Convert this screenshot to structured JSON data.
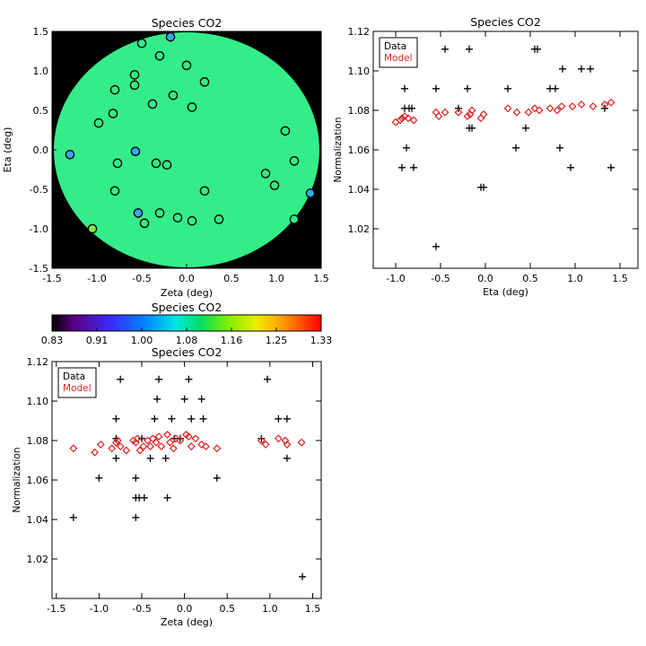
{
  "chart_data": [
    {
      "id": "map",
      "type": "scatter",
      "title": "Species CO2",
      "xlabel": "Zeta (deg)",
      "ylabel": "Eta (deg)",
      "xlim": [
        -1.5,
        1.5
      ],
      "ylim": [
        -1.5,
        1.5
      ],
      "xticks": [
        "-1.5",
        "-1.0",
        "-0.5",
        "0.0",
        "0.5",
        "1.0",
        "1.5"
      ],
      "yticks": [
        "-1.5",
        "-1.0",
        "-0.5",
        "0.0",
        "0.5",
        "1.0",
        "1.5"
      ],
      "background_color": "#000000",
      "disk_color": "#33ee88",
      "points": [
        {
          "x": -0.18,
          "y": 1.43,
          "color": "#33aaff"
        },
        {
          "x": -0.5,
          "y": 1.35,
          "color": "#33ee88"
        },
        {
          "x": -0.3,
          "y": 1.19,
          "color": "#33ee88"
        },
        {
          "x": 0.0,
          "y": 1.07,
          "color": "#33ee88"
        },
        {
          "x": -0.58,
          "y": 0.95,
          "color": "#33ee88"
        },
        {
          "x": 0.2,
          "y": 0.86,
          "color": "#33ee88"
        },
        {
          "x": -0.8,
          "y": 0.76,
          "color": "#33ee88"
        },
        {
          "x": -0.58,
          "y": 0.82,
          "color": "#33ee88"
        },
        {
          "x": -0.15,
          "y": 0.69,
          "color": "#33ee88"
        },
        {
          "x": -0.38,
          "y": 0.58,
          "color": "#33ee88"
        },
        {
          "x": 0.06,
          "y": 0.54,
          "color": "#33ee88"
        },
        {
          "x": -0.82,
          "y": 0.46,
          "color": "#33ee88"
        },
        {
          "x": -0.98,
          "y": 0.34,
          "color": "#33ee88"
        },
        {
          "x": 1.1,
          "y": 0.24,
          "color": "#33ee88"
        },
        {
          "x": -1.3,
          "y": -0.06,
          "color": "#33aaff"
        },
        {
          "x": -0.57,
          "y": -0.02,
          "color": "#33aaff"
        },
        {
          "x": -0.77,
          "y": -0.17,
          "color": "#33ee88"
        },
        {
          "x": -0.34,
          "y": -0.17,
          "color": "#33ee88"
        },
        {
          "x": -0.22,
          "y": -0.19,
          "color": "#33ee88"
        },
        {
          "x": 1.2,
          "y": -0.14,
          "color": "#33ee88"
        },
        {
          "x": 0.88,
          "y": -0.3,
          "color": "#33ee88"
        },
        {
          "x": 0.98,
          "y": -0.45,
          "color": "#33ee88"
        },
        {
          "x": -0.8,
          "y": -0.52,
          "color": "#33ee88"
        },
        {
          "x": 0.2,
          "y": -0.52,
          "color": "#33ee88"
        },
        {
          "x": 1.38,
          "y": -0.55,
          "color": "#33aaff"
        },
        {
          "x": -0.54,
          "y": -0.8,
          "color": "#33aaff"
        },
        {
          "x": -0.3,
          "y": -0.8,
          "color": "#33ee88"
        },
        {
          "x": -0.1,
          "y": -0.86,
          "color": "#33ee88"
        },
        {
          "x": 0.06,
          "y": -0.9,
          "color": "#33ee88"
        },
        {
          "x": 0.36,
          "y": -0.88,
          "color": "#33ee88"
        },
        {
          "x": -0.47,
          "y": -0.93,
          "color": "#33ee88"
        },
        {
          "x": 1.2,
          "y": -0.88,
          "color": "#33ee88"
        },
        {
          "x": -1.05,
          "y": -1.0,
          "color": "#88ee44"
        }
      ]
    },
    {
      "id": "eta",
      "type": "scatter",
      "title": "Species CO2",
      "xlabel": "Eta (deg)",
      "ylabel": "Normalization",
      "xlim": [
        -1.25,
        1.7
      ],
      "ylim": [
        1.0,
        1.12
      ],
      "xticks": [
        -1.0,
        -0.5,
        0.0,
        0.5,
        1.0,
        1.5
      ],
      "xtick_labels": [
        "-1.0",
        "-0.5",
        "0.0",
        "0.5",
        "1.0",
        "1.5"
      ],
      "yticks": [
        1.02,
        1.04,
        1.06,
        1.08,
        1.1,
        1.12
      ],
      "ytick_labels": [
        "1.02",
        "1.04",
        "1.06",
        "1.08",
        "1.10",
        "1.12"
      ],
      "legend": [
        "Data",
        "Model"
      ],
      "legend_position": "top-left",
      "series": [
        {
          "name": "Data",
          "marker": "plus",
          "color": "#000000",
          "points": [
            [
              -1.0,
              1.111
            ],
            [
              -0.93,
              1.051
            ],
            [
              -0.9,
              1.091
            ],
            [
              -0.9,
              1.081
            ],
            [
              -0.88,
              1.061
            ],
            [
              -0.85,
              1.081
            ],
            [
              -0.82,
              1.081
            ],
            [
              -0.8,
              1.051
            ],
            [
              -0.55,
              1.091
            ],
            [
              -0.55,
              1.011
            ],
            [
              -0.45,
              1.111
            ],
            [
              -0.3,
              1.081
            ],
            [
              -0.2,
              1.091
            ],
            [
              -0.18,
              1.111
            ],
            [
              -0.18,
              1.071
            ],
            [
              -0.15,
              1.071
            ],
            [
              -0.05,
              1.041
            ],
            [
              -0.02,
              1.041
            ],
            [
              0.25,
              1.091
            ],
            [
              0.34,
              1.061
            ],
            [
              0.45,
              1.071
            ],
            [
              0.55,
              1.111
            ],
            [
              0.58,
              1.111
            ],
            [
              0.72,
              1.091
            ],
            [
              0.78,
              1.091
            ],
            [
              0.83,
              1.061
            ],
            [
              0.86,
              1.101
            ],
            [
              0.95,
              1.051
            ],
            [
              1.07,
              1.101
            ],
            [
              1.17,
              1.101
            ],
            [
              1.33,
              1.081
            ],
            [
              1.4,
              1.051
            ]
          ]
        },
        {
          "name": "Model",
          "marker": "diamond",
          "color": "#dd2222",
          "points": [
            [
              -1.0,
              1.074
            ],
            [
              -0.95,
              1.075
            ],
            [
              -0.93,
              1.076
            ],
            [
              -0.9,
              1.077
            ],
            [
              -0.86,
              1.076
            ],
            [
              -0.8,
              1.075
            ],
            [
              -0.55,
              1.079
            ],
            [
              -0.52,
              1.077
            ],
            [
              -0.45,
              1.079
            ],
            [
              -0.3,
              1.079
            ],
            [
              -0.2,
              1.077
            ],
            [
              -0.17,
              1.078
            ],
            [
              -0.15,
              1.08
            ],
            [
              -0.05,
              1.076
            ],
            [
              -0.02,
              1.078
            ],
            [
              0.25,
              1.081
            ],
            [
              0.35,
              1.079
            ],
            [
              0.48,
              1.079
            ],
            [
              0.55,
              1.081
            ],
            [
              0.6,
              1.08
            ],
            [
              0.72,
              1.081
            ],
            [
              0.8,
              1.08
            ],
            [
              0.85,
              1.082
            ],
            [
              0.97,
              1.082
            ],
            [
              1.07,
              1.083
            ],
            [
              1.2,
              1.082
            ],
            [
              1.33,
              1.083
            ],
            [
              1.4,
              1.084
            ]
          ]
        }
      ]
    },
    {
      "id": "colorbar",
      "type": "heatmap",
      "title": "Species CO2",
      "range": [
        0.83,
        1.33
      ],
      "tick_labels": [
        "0.83",
        "0.91",
        "1.00",
        "1.08",
        "1.16",
        "1.25",
        "1.33"
      ]
    },
    {
      "id": "zeta",
      "type": "scatter",
      "title": "Species CO2",
      "xlabel": "Zeta (deg)",
      "ylabel": "Normalization",
      "xlim": [
        -1.55,
        1.6
      ],
      "ylim": [
        1.0,
        1.12
      ],
      "xticks": [
        -1.5,
        -1.0,
        -0.5,
        0.0,
        0.5,
        1.0,
        1.5
      ],
      "xtick_labels": [
        "-1.5",
        "-1.0",
        "-0.5",
        "0.0",
        "0.5",
        "1.0",
        "1.5"
      ],
      "yticks": [
        1.02,
        1.04,
        1.06,
        1.08,
        1.1,
        1.12
      ],
      "ytick_labels": [
        "1.02",
        "1.04",
        "1.06",
        "1.08",
        "1.10",
        "1.12"
      ],
      "legend": [
        "Data",
        "Model"
      ],
      "legend_position": "top-left",
      "series": [
        {
          "name": "Data",
          "marker": "plus",
          "color": "#000000",
          "points": [
            [
              -1.3,
              1.041
            ],
            [
              -1.0,
              1.061
            ],
            [
              -0.8,
              1.091
            ],
            [
              -0.8,
              1.081
            ],
            [
              -0.8,
              1.071
            ],
            [
              -0.75,
              1.111
            ],
            [
              -0.57,
              1.061
            ],
            [
              -0.57,
              1.051
            ],
            [
              -0.57,
              1.041
            ],
            [
              -0.53,
              1.051
            ],
            [
              -0.47,
              1.051
            ],
            [
              -0.5,
              1.081
            ],
            [
              -0.4,
              1.071
            ],
            [
              -0.35,
              1.091
            ],
            [
              -0.32,
              1.101
            ],
            [
              -0.3,
              1.111
            ],
            [
              -0.22,
              1.071
            ],
            [
              -0.2,
              1.051
            ],
            [
              -0.15,
              1.091
            ],
            [
              -0.12,
              1.081
            ],
            [
              -0.05,
              1.081
            ],
            [
              0.0,
              1.101
            ],
            [
              0.05,
              1.111
            ],
            [
              0.08,
              1.091
            ],
            [
              0.2,
              1.101
            ],
            [
              0.22,
              1.091
            ],
            [
              0.38,
              1.061
            ],
            [
              0.9,
              1.081
            ],
            [
              0.97,
              1.111
            ],
            [
              1.1,
              1.091
            ],
            [
              1.2,
              1.071
            ],
            [
              1.2,
              1.091
            ],
            [
              1.38,
              1.011
            ]
          ]
        },
        {
          "name": "Model",
          "marker": "diamond",
          "color": "#dd2222",
          "points": [
            [
              -1.3,
              1.076
            ],
            [
              -1.05,
              1.074
            ],
            [
              -0.98,
              1.078
            ],
            [
              -0.85,
              1.076
            ],
            [
              -0.8,
              1.079
            ],
            [
              -0.78,
              1.08
            ],
            [
              -0.75,
              1.077
            ],
            [
              -0.68,
              1.075
            ],
            [
              -0.6,
              1.08
            ],
            [
              -0.57,
              1.079
            ],
            [
              -0.55,
              1.081
            ],
            [
              -0.52,
              1.075
            ],
            [
              -0.48,
              1.077
            ],
            [
              -0.43,
              1.08
            ],
            [
              -0.4,
              1.077
            ],
            [
              -0.37,
              1.081
            ],
            [
              -0.33,
              1.079
            ],
            [
              -0.3,
              1.082
            ],
            [
              -0.27,
              1.077
            ],
            [
              -0.2,
              1.083
            ],
            [
              -0.17,
              1.079
            ],
            [
              -0.13,
              1.076
            ],
            [
              -0.1,
              1.081
            ],
            [
              -0.05,
              1.08
            ],
            [
              0.02,
              1.083
            ],
            [
              0.05,
              1.082
            ],
            [
              0.08,
              1.077
            ],
            [
              0.13,
              1.081
            ],
            [
              0.2,
              1.078
            ],
            [
              0.25,
              1.077
            ],
            [
              0.38,
              1.076
            ],
            [
              0.9,
              1.08
            ],
            [
              0.95,
              1.078
            ],
            [
              1.1,
              1.081
            ],
            [
              1.18,
              1.08
            ],
            [
              1.2,
              1.078
            ],
            [
              1.37,
              1.079
            ]
          ]
        }
      ]
    }
  ]
}
